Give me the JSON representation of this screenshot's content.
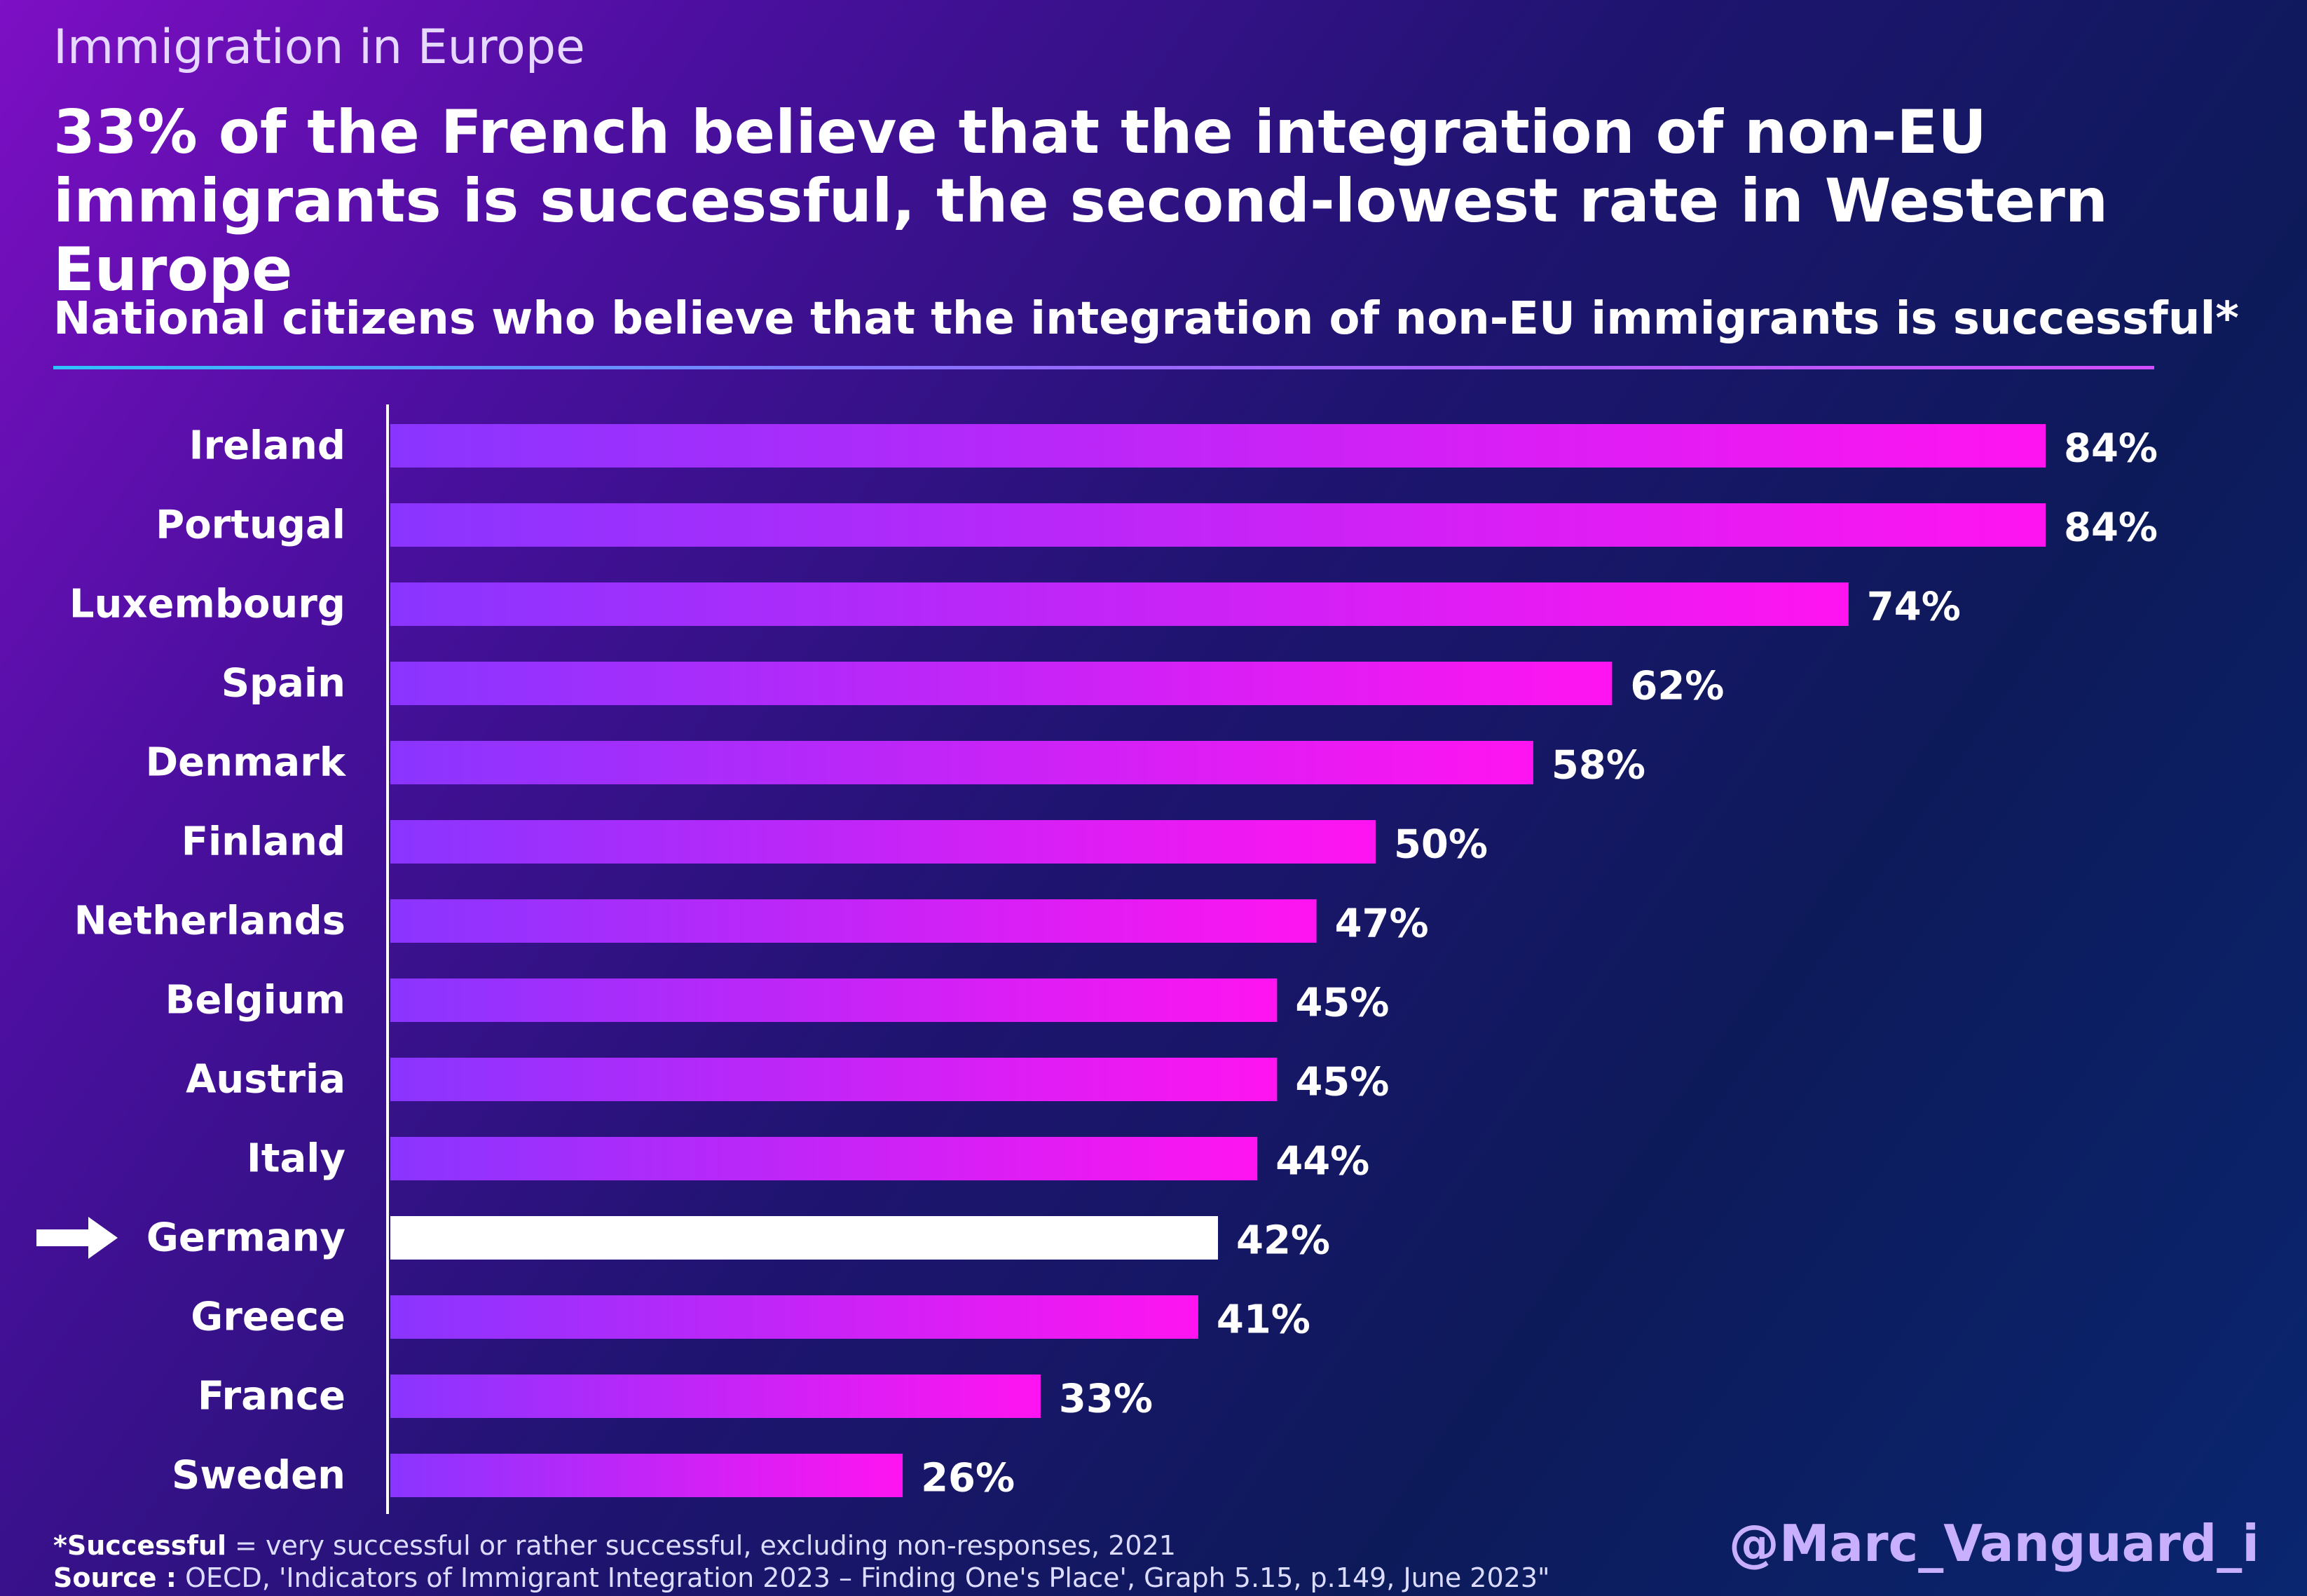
{
  "header": {
    "topic": "Immigration in Europe",
    "headline": "33% of the French believe that the integration of non-EU immigrants is successful, the second-lowest rate in Western Europe",
    "subtitle": "National citizens who believe that the integration of non-EU immigrants is successful*"
  },
  "chart_data": {
    "type": "bar",
    "orientation": "horizontal",
    "categories": [
      "Ireland",
      "Portugal",
      "Luxembourg",
      "Spain",
      "Denmark",
      "Finland",
      "Netherlands",
      "Belgium",
      "Austria",
      "Italy",
      "Germany",
      "Greece",
      "France",
      "Sweden"
    ],
    "values": [
      84,
      84,
      74,
      62,
      58,
      50,
      47,
      45,
      45,
      44,
      42,
      41,
      33,
      26
    ],
    "value_labels": [
      "84%",
      "84%",
      "74%",
      "62%",
      "58%",
      "50%",
      "47%",
      "45%",
      "45%",
      "44%",
      "42%",
      "41%",
      "33%",
      "26%"
    ],
    "highlight_category": "Germany",
    "xlim": [
      0,
      84
    ],
    "grid": false,
    "colors": {
      "bar_start": "#8a35ff",
      "bar_end": "#ff14f0",
      "highlight": "#ffffff",
      "axis": "#ffffff"
    }
  },
  "footer": {
    "note_bold": "*Successful",
    "note_text": " = very successful or rather successful, excluding non-responses, 2021",
    "source_bold": "Source :",
    "source_text": " OECD, 'Indicators of Immigrant Integration 2023 – Finding One's Place', Graph 5.15, p.149, June 2023\"",
    "handle": "@Marc_Vanguard_i"
  },
  "icons": {
    "highlight_marker": "right-arrow-icon"
  }
}
